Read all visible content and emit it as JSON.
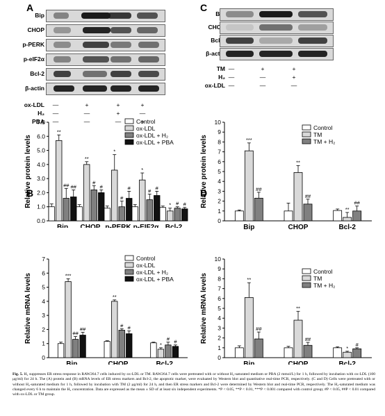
{
  "panel_letters": {
    "A": "A",
    "B": "B",
    "C": "C",
    "D": "D"
  },
  "blot_A": {
    "rows": [
      "Bip",
      "CHOP",
      "p-PERK",
      "p-eIF2α",
      "Bcl-2",
      "β-actin"
    ],
    "conditions": [
      {
        "label": "ox-LDL",
        "marks": [
          "—",
          "+",
          "+",
          "+"
        ]
      },
      {
        "label": "H₂",
        "marks": [
          "—",
          "—",
          "+",
          "—"
        ]
      },
      {
        "label": "PBA",
        "marks": [
          "—",
          "—",
          "—",
          "+"
        ]
      }
    ]
  },
  "blot_C": {
    "rows": [
      "Bip",
      "CHOP",
      "Bcl-2",
      "β-actin"
    ],
    "conditions": [
      {
        "label": "TM",
        "marks": [
          "—",
          "+",
          "+"
        ]
      },
      {
        "label": "H₂",
        "marks": [
          "—",
          "—",
          "+"
        ]
      },
      {
        "label": "ox-LDL",
        "marks": [
          "—",
          "—",
          "—"
        ]
      }
    ]
  },
  "chart_data": [
    {
      "panel": "A",
      "type": "bar",
      "ylabel": "Relative protein levels",
      "ylim": [
        0,
        7
      ],
      "yticks": [
        "0.0",
        "1.0",
        "2.0",
        "3.0",
        "4.0",
        "5.0",
        "6.0",
        "7.0"
      ],
      "categories": [
        "Bip",
        "CHOP",
        "p-PERK",
        "p-EIF2α",
        "Bcl-2"
      ],
      "series": [
        {
          "name": "Control",
          "color": "#ffffff",
          "values": [
            1.0,
            1.0,
            0.9,
            1.0,
            0.95
          ],
          "errors": [
            0.2,
            0.15,
            0.15,
            0.15,
            0.1
          ]
        },
        {
          "name": "ox-LDL",
          "color": "#d9d9d9",
          "values": [
            5.7,
            4.0,
            3.6,
            2.9,
            0.7
          ],
          "errors": [
            0.4,
            0.2,
            1.1,
            0.5,
            0.2
          ]
        },
        {
          "name": "ox-LDL + H₂",
          "color": "#808080",
          "values": [
            1.6,
            2.2,
            1.0,
            1.5,
            0.9
          ],
          "errors": [
            0.7,
            0.3,
            0.4,
            0.4,
            0.1
          ]
        },
        {
          "name": "ox-LDL + PBA",
          "color": "#111111",
          "values": [
            1.7,
            2.0,
            1.6,
            1.8,
            0.85
          ],
          "errors": [
            0.5,
            0.2,
            0.5,
            0.3,
            0.1
          ]
        }
      ],
      "annotations": [
        {
          "category": 0,
          "series": 1,
          "text": "**"
        },
        {
          "category": 0,
          "series": 2,
          "text": "##"
        },
        {
          "category": 0,
          "series": 3,
          "text": "##"
        },
        {
          "category": 1,
          "series": 1,
          "text": "**"
        },
        {
          "category": 1,
          "series": 2,
          "text": "#"
        },
        {
          "category": 1,
          "series": 3,
          "text": "#"
        },
        {
          "category": 2,
          "series": 1,
          "text": "*"
        },
        {
          "category": 2,
          "series": 2,
          "text": "#"
        },
        {
          "category": 2,
          "series": 3,
          "text": "#"
        },
        {
          "category": 3,
          "series": 1,
          "text": "*"
        },
        {
          "category": 3,
          "series": 2,
          "text": "#"
        },
        {
          "category": 3,
          "series": 3,
          "text": "#"
        },
        {
          "category": 4,
          "series": 1,
          "text": "*"
        },
        {
          "category": 4,
          "series": 2,
          "text": "#"
        },
        {
          "category": 4,
          "series": 3,
          "text": "#"
        }
      ]
    },
    {
      "panel": "B",
      "type": "bar",
      "ylabel": "Relative mRNA levels",
      "ylim": [
        0,
        7
      ],
      "yticks": [
        "0",
        "1",
        "2",
        "3",
        "4",
        "5",
        "6",
        "7"
      ],
      "categories": [
        "Bip",
        "CHOP",
        "Bcl-2"
      ],
      "series": [
        {
          "name": "Control",
          "color": "#ffffff",
          "values": [
            1.0,
            1.15,
            1.05
          ],
          "errors": [
            0.1,
            0.05,
            0.05
          ]
        },
        {
          "name": "ox-LDL",
          "color": "#d9d9d9",
          "values": [
            5.4,
            4.0,
            0.6
          ],
          "errors": [
            0.2,
            0.1,
            0.1
          ]
        },
        {
          "name": "ox-LDL + H₂",
          "color": "#808080",
          "values": [
            1.3,
            1.95,
            0.9
          ],
          "errors": [
            0.2,
            0.1,
            0.2
          ]
        },
        {
          "name": "ox-LDL + PBA",
          "color": "#111111",
          "values": [
            1.6,
            1.7,
            0.8
          ],
          "errors": [
            0.2,
            0.2,
            0.1
          ]
        }
      ],
      "annotations": [
        {
          "category": 0,
          "series": 1,
          "text": "***"
        },
        {
          "category": 0,
          "series": 2,
          "text": "##"
        },
        {
          "category": 0,
          "series": 3,
          "text": "##"
        },
        {
          "category": 1,
          "series": 1,
          "text": "**"
        },
        {
          "category": 1,
          "series": 2,
          "text": "#"
        },
        {
          "category": 1,
          "series": 3,
          "text": "#"
        },
        {
          "category": 2,
          "series": 1,
          "text": "*"
        },
        {
          "category": 2,
          "series": 2,
          "text": "#"
        },
        {
          "category": 2,
          "series": 3,
          "text": "#"
        }
      ]
    },
    {
      "panel": "C",
      "type": "bar",
      "ylabel": "Relative protein levels",
      "ylim": [
        0,
        10
      ],
      "yticks": [
        "0",
        "1",
        "2",
        "3",
        "4",
        "5",
        "6",
        "7",
        "8",
        "9",
        "10"
      ],
      "categories": [
        "Bip",
        "CHOP",
        "Bcl-2"
      ],
      "series": [
        {
          "name": "Control",
          "color": "#ffffff",
          "values": [
            1.0,
            1.0,
            1.05
          ],
          "errors": [
            0.1,
            0.8,
            0.15
          ]
        },
        {
          "name": "TM",
          "color": "#d9d9d9",
          "values": [
            7.1,
            4.9,
            0.35
          ],
          "errors": [
            0.8,
            0.7,
            0.5
          ]
        },
        {
          "name": "TM + H₂",
          "color": "#808080",
          "values": [
            2.3,
            1.7,
            1.0
          ],
          "errors": [
            0.6,
            0.5,
            0.5
          ]
        }
      ],
      "annotations": [
        {
          "category": 0,
          "series": 1,
          "text": "***"
        },
        {
          "category": 0,
          "series": 2,
          "text": "##"
        },
        {
          "category": 1,
          "series": 1,
          "text": "**"
        },
        {
          "category": 1,
          "series": 2,
          "text": "##"
        },
        {
          "category": 2,
          "series": 1,
          "text": "**"
        },
        {
          "category": 2,
          "series": 2,
          "text": "##"
        }
      ]
    },
    {
      "panel": "D",
      "type": "bar",
      "ylabel": "Relative mRNA levels",
      "ylim": [
        0,
        10
      ],
      "yticks": [
        "0",
        "1",
        "2",
        "3",
        "4",
        "5",
        "6",
        "7",
        "8",
        "9",
        "10"
      ],
      "categories": [
        "Bip",
        "CHOP",
        "Bcl-2"
      ],
      "series": [
        {
          "name": "Control",
          "color": "#ffffff",
          "values": [
            1.0,
            1.0,
            1.0
          ],
          "errors": [
            0.2,
            0.15,
            0.1
          ]
        },
        {
          "name": "TM",
          "color": "#d9d9d9",
          "values": [
            6.1,
            3.8,
            0.55
          ],
          "errors": [
            1.5,
            0.9,
            0.1
          ]
        },
        {
          "name": "TM + H₂",
          "color": "#808080",
          "values": [
            1.9,
            1.25,
            0.9
          ],
          "errors": [
            0.7,
            0.3,
            0.1
          ]
        }
      ],
      "annotations": [
        {
          "category": 0,
          "series": 1,
          "text": "**"
        },
        {
          "category": 0,
          "series": 2,
          "text": "##"
        },
        {
          "category": 1,
          "series": 1,
          "text": "**"
        },
        {
          "category": 1,
          "series": 2,
          "text": "##"
        },
        {
          "category": 2,
          "series": 1,
          "text": "*"
        },
        {
          "category": 2,
          "series": 2,
          "text": "#"
        }
      ]
    }
  ],
  "caption": {
    "label": "Fig. 5.",
    "text": " H₂ suppresses ER stress response in RAW264.7 cells induced by ox-LDL or TM. RAW264.7 cells were pretreated with or without H₂-saturated medium or PBA (2 mmol/L) for 1 h, followed by incubation with ox-LDL (100 μg/ml) for 24 h. The (A) protein and (B) mRNA levels of ER stress markers and Bcl-2, the apoptotic marker, were evaluated by Western blot and quantitative real-time PCR, respectively. (C and D) Cells were pretreated with or without H₂-saturated medium for 1 h, followed by incubation with TM (2 μg/ml) for 24 h, and then ER stress markers and Bcl-2 were determined by Western blot and real-time PCR, respectively. The H₂-saturated medium was changed every 6 h to maintain the H₂ concentration. Data are expressed as the mean ± SD of at least six independent experiments. *P < 0.05, **P < 0.01, ***P < 0.001 compared with control group; #P < 0.05, ##P < 0.01 compared with ox-LDL or TM group."
  }
}
